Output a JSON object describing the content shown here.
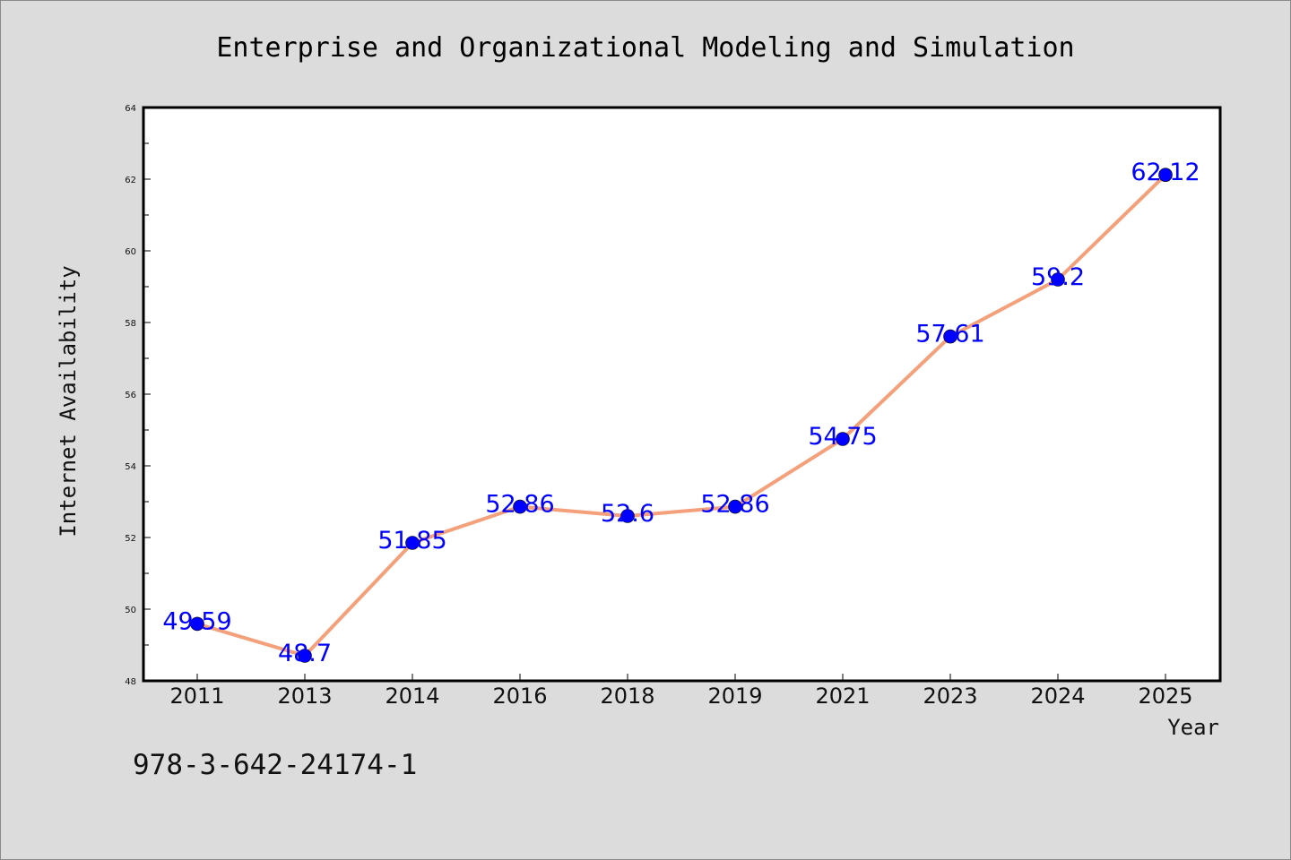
{
  "chart_data": {
    "type": "line",
    "title": "Enterprise and Organizational Modeling and Simulation",
    "xlabel": "Year",
    "ylabel": "Internet Availability",
    "categories": [
      "2011",
      "2013",
      "2014",
      "2016",
      "2018",
      "2019",
      "2021",
      "2023",
      "2024",
      "2025"
    ],
    "series": [
      {
        "values": [
          49.59,
          48.7,
          51.85,
          52.86,
          52.6,
          52.86,
          54.75,
          57.61,
          59.2,
          62.12
        ],
        "labels": [
          "49.59",
          "48.7",
          "51.85",
          "52.86",
          "52.6",
          "52.86",
          "54.75",
          "57.61",
          "59.2",
          "62.12"
        ],
        "line_color": "#f4a07a",
        "marker_color": "#0000ff"
      }
    ],
    "ylim": [
      48,
      64
    ],
    "yticks": [
      "48",
      "50",
      "52",
      "54",
      "56",
      "58",
      "60",
      "62",
      "64"
    ],
    "grid": false,
    "legend": "none"
  },
  "footer": {
    "text": "978-3-642-24174-1"
  },
  "colors": {
    "background": "#dcdcdc",
    "plot_background": "#ffffff",
    "label_color": "#0000ff"
  }
}
